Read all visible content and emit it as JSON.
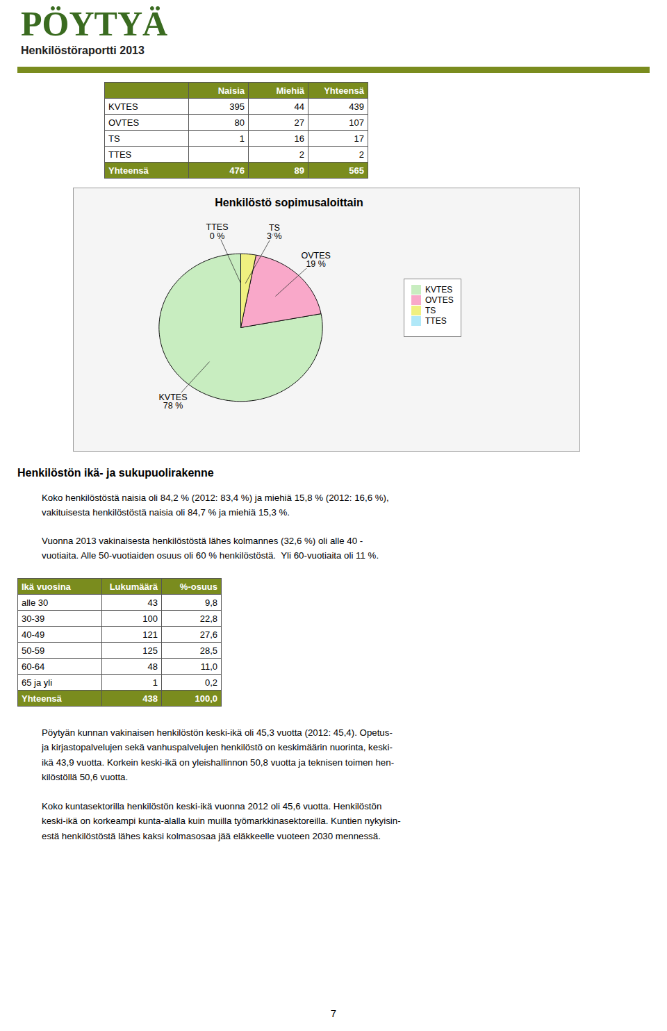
{
  "title": "PÖYTYÄ",
  "subtitle": "Henkilöstöraportti 2013",
  "title_color": "#3a6b20",
  "divider_color": "#7a8c1e",
  "table1": {
    "headers": [
      "",
      "Naisia",
      "Miehiä",
      "Yhteensä"
    ],
    "rows": [
      [
        "KVTES",
        "395",
        "44",
        "439"
      ],
      [
        "OVTES",
        "80",
        "27",
        "107"
      ],
      [
        "TS",
        "1",
        "16",
        "17"
      ],
      [
        "TTES",
        "",
        "2",
        "2"
      ],
      [
        "Yhteensä",
        "476",
        "89",
        "565"
      ]
    ],
    "header_bg": "#7a8c1e",
    "header_fg": "#ffffff",
    "total_bg": "#7a8c1e",
    "total_fg": "#ffffff"
  },
  "chart_data": {
    "type": "pie",
    "title": "Henkilöstö sopimusaloittain",
    "categories": [
      "KVTES",
      "OVTES",
      "TS",
      "TTES"
    ],
    "values": [
      78,
      19,
      3,
      0
    ],
    "value_labels": [
      "78 %",
      "19 %",
      "3 %",
      "0 %"
    ],
    "colors": [
      "#c8edc0",
      "#f9a8c9",
      "#f0f080",
      "#b0e8f8"
    ],
    "data_labels": true,
    "legend": "right"
  },
  "section2_title": "Henkilöstön ikä- ja sukupuolirakenne",
  "section2_text1": "Koko henkilöstöstä naisia oli 84,2 % (2012: 83,4 %) ja miehiä 15,8 % (2012: 16,6 %),\nvakituisesta henkilöstöstä naisia oli 84,7 % ja miehiä 15,3 %.",
  "section2_text2": "Vuonna 2013 vakinaisesta henkilöstöstä lähes kolmannes (32,6 %) oli alle 40 -\nvuotiaita. Alle 50-vuotiaiden osuus oli 60 % henkilöstöstä.  Yli 60-vuotiaita oli 11 %.",
  "table2": {
    "headers": [
      "Ikä vuosina",
      "Lukumäärä",
      "%-osuus"
    ],
    "rows": [
      [
        "alle 30",
        "43",
        "9,8"
      ],
      [
        "30-39",
        "100",
        "22,8"
      ],
      [
        "40-49",
        "121",
        "27,6"
      ],
      [
        "50-59",
        "125",
        "28,5"
      ],
      [
        "60-64",
        "48",
        "11,0"
      ],
      [
        "65 ja yli",
        "1",
        "0,2"
      ],
      [
        "Yhteensä",
        "438",
        "100,0"
      ]
    ],
    "header_bg": "#7a8c1e",
    "header_fg": "#ffffff",
    "total_bg": "#7a8c1e",
    "total_fg": "#ffffff"
  },
  "section3_text1": "Pöytyän kunnan vakinaisen henkilöstön keski-ikä oli 45,3 vuotta (2012: 45,4). Opetus-\nja kirjastopalvelujen sekä vanhuspalvelujen henkilöstö on keskimäärin nuorinta, keski-\nikä 43,9 vuotta. Korkein keski-ikä on yleishallinnon 50,8 vuotta ja teknisen toimen hen-\nkilöstöllä 50,6 vuotta.",
  "section3_text2": "Koko kuntasektorilla henkilöstön keski-ikä vuonna 2012 oli 45,6 vuotta. Henkilöstön\nkeski-ikä on korkeampi kunta-alalla kuin muilla työmarkkinasektoreilla. Kuntien nykyisin-\nestä henkilöstöstä lähes kaksi kolmasosaa jää eläkkeelle vuoteen 2030 mennessä.",
  "page_number": "7"
}
